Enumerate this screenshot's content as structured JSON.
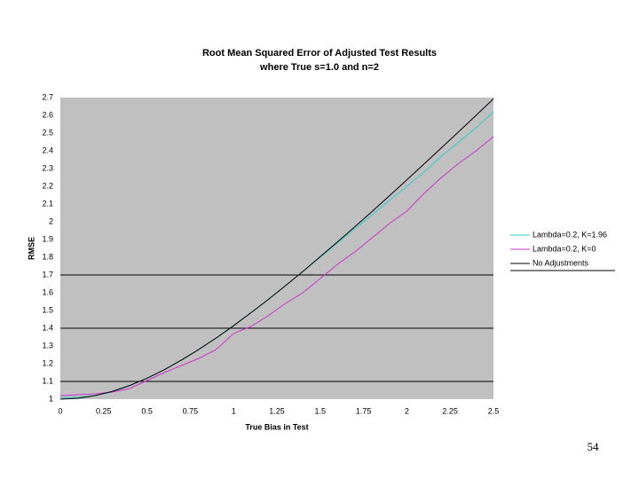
{
  "chart_data": {
    "type": "line",
    "title": "Root Mean Squared Error of Adjusted Test Results",
    "subtitle": "where True s=1.0 and n=2",
    "x_label": "True Bias in Test",
    "y_label": "RMSE",
    "x": [
      0,
      0.1,
      0.2,
      0.3,
      0.4,
      0.5,
      0.6,
      0.7,
      0.8,
      0.9,
      1,
      1.1,
      1.2,
      1.3,
      1.4,
      1.5,
      1.6,
      1.7,
      1.8,
      1.9,
      2,
      2.1,
      2.2,
      2.3,
      2.4,
      2.5
    ],
    "series": [
      {
        "name": "Lambda=0.2, K=1.96",
        "color": "#33cccc",
        "values": [
          1.01,
          1.01,
          1.02,
          1.04,
          1.077,
          1.118,
          1.166,
          1.221,
          1.281,
          1.345,
          1.414,
          1.487,
          1.562,
          1.64,
          1.72,
          1.8,
          1.88,
          1.96,
          2.04,
          2.12,
          2.2,
          2.28,
          2.37,
          2.45,
          2.53,
          2.62
        ]
      },
      {
        "name": "Lambda=0.2, K=0",
        "color": "#cc33cc",
        "values": [
          1.02,
          1.025,
          1.03,
          1.04,
          1.06,
          1.105,
          1.15,
          1.19,
          1.23,
          1.28,
          1.37,
          1.41,
          1.47,
          1.54,
          1.6,
          1.68,
          1.76,
          1.83,
          1.91,
          1.99,
          2.06,
          2.16,
          2.25,
          2.33,
          2.4,
          2.48
        ]
      },
      {
        "name": "No Adjustments",
        "color": "#000000",
        "values": [
          1,
          1.005,
          1.02,
          1.044,
          1.077,
          1.118,
          1.166,
          1.221,
          1.281,
          1.345,
          1.414,
          1.487,
          1.562,
          1.64,
          1.72,
          1.803,
          1.887,
          1.972,
          2.059,
          2.147,
          2.236,
          2.326,
          2.417,
          2.508,
          2.6,
          2.693
        ]
      }
    ],
    "xlim": [
      0,
      2.5
    ],
    "xticks": [
      0,
      0.25,
      0.5,
      0.75,
      1,
      1.25,
      1.5,
      1.75,
      2,
      2.25,
      2.5
    ],
    "ylim": [
      1,
      2.7
    ],
    "yticks": [
      1,
      1.1,
      1.2,
      1.3,
      1.4,
      1.5,
      1.6,
      1.7,
      1.8,
      1.9,
      2,
      2.1,
      2.2,
      2.3,
      2.4,
      2.5,
      2.6,
      2.7
    ],
    "grid_lines": [
      1.1,
      1.4,
      1.7
    ],
    "plot_background": "#c0c0c0",
    "legend": "right"
  },
  "page_number": "54"
}
